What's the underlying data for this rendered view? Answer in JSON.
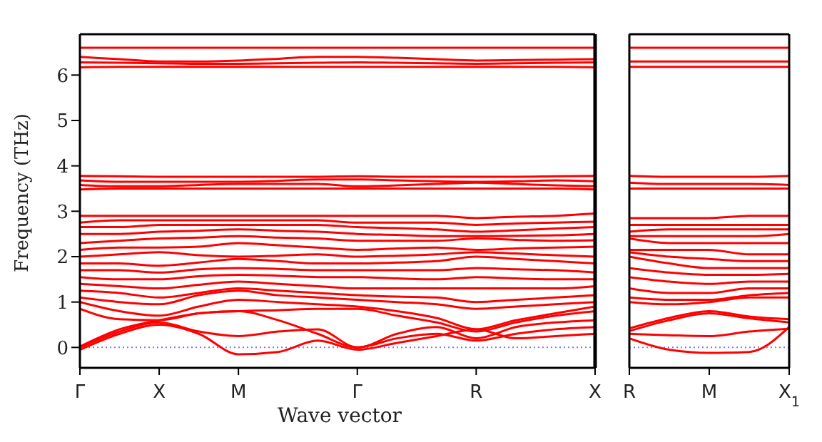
{
  "chart_data": [
    {
      "type": "line",
      "xlabel": "Wave vector",
      "ylabel": "Frequency (THz)",
      "marker": "none",
      "line_style": "solid",
      "categories": [
        "Γ",
        null,
        "X",
        null,
        "M",
        null,
        null,
        "Γ",
        null,
        null,
        "R",
        null,
        null,
        "X"
      ],
      "ylim": [
        -0.45,
        6.9
      ],
      "yticks": [
        0,
        1,
        2,
        3,
        4,
        5,
        6
      ],
      "ref_lines": [
        {
          "axis": "y",
          "value": 0,
          "color": "#7777ff",
          "line_style": "dotted"
        }
      ],
      "series": [
        {
          "color": "#ff0000",
          "values": [
            -0.05,
            0.3,
            0.5,
            0.3,
            -0.15,
            -0.1,
            0.15,
            -0.05,
            0.1,
            0.25,
            0.4,
            0.2,
            0.25,
            0.3
          ]
        },
        {
          "color": "#ff0000",
          "values": [
            0,
            0.35,
            0.55,
            0.35,
            0.25,
            0.35,
            0.4,
            0,
            0.2,
            0.3,
            0.15,
            0.3,
            0.4,
            0.45
          ]
        },
        {
          "color": "#ff0000",
          "values": [
            0.02,
            0.4,
            0.6,
            0.75,
            0.8,
            0.6,
            0.3,
            0,
            0.3,
            0.45,
            0.2,
            0.45,
            0.55,
            0.6
          ]
        },
        {
          "color": "#ff0000",
          "values": [
            0.85,
            0.62,
            0.6,
            0.75,
            0.8,
            0.82,
            0.85,
            0.85,
            0.7,
            0.55,
            0.35,
            0.55,
            0.7,
            0.8
          ]
        },
        {
          "color": "#ff0000",
          "values": [
            1,
            0.8,
            0.7,
            0.9,
            1.05,
            1,
            0.95,
            0.9,
            0.8,
            0.65,
            0.4,
            0.6,
            0.75,
            0.9
          ]
        },
        {
          "color": "#ff0000",
          "values": [
            1.1,
            1,
            0.95,
            1.15,
            1.25,
            1.15,
            1.1,
            1.05,
            1,
            0.95,
            0.85,
            0.9,
            0.95,
            1
          ]
        },
        {
          "color": "#ff0000",
          "values": [
            1.25,
            1.2,
            1.1,
            1.2,
            1.3,
            1.25,
            1.2,
            1.15,
            1.12,
            1.1,
            1,
            1.05,
            1.1,
            1.15
          ]
        },
        {
          "color": "#ff0000",
          "values": [
            1.4,
            1.35,
            1.3,
            1.38,
            1.45,
            1.4,
            1.35,
            1.3,
            1.3,
            1.3,
            1.3,
            1.3,
            1.3,
            1.35
          ]
        },
        {
          "color": "#ff0000",
          "values": [
            1.55,
            1.5,
            1.5,
            1.57,
            1.6,
            1.58,
            1.55,
            1.55,
            1.52,
            1.5,
            1.55,
            1.52,
            1.5,
            1.5
          ]
        },
        {
          "color": "#ff0000",
          "values": [
            1.7,
            1.7,
            1.65,
            1.72,
            1.75,
            1.73,
            1.7,
            1.7,
            1.7,
            1.7,
            1.75,
            1.72,
            1.7,
            1.65
          ]
        },
        {
          "color": "#ff0000",
          "values": [
            1.85,
            1.85,
            1.8,
            1.87,
            1.95,
            1.9,
            1.85,
            1.85,
            1.87,
            1.9,
            2,
            1.95,
            1.9,
            1.85
          ]
        },
        {
          "color": "#ff0000",
          "values": [
            2,
            2.05,
            2.1,
            2.03,
            2,
            2.02,
            2.05,
            2,
            2.02,
            2.05,
            2.1,
            2.07,
            2.03,
            2
          ]
        },
        {
          "color": "#ff0000",
          "values": [
            2.15,
            2.2,
            2.2,
            2.22,
            2.3,
            2.25,
            2.2,
            2.15,
            2.18,
            2.2,
            2.15,
            2.18,
            2.2,
            2.22
          ]
        },
        {
          "color": "#ff0000",
          "values": [
            2.3,
            2.35,
            2.4,
            2.42,
            2.45,
            2.42,
            2.4,
            2.35,
            2.35,
            2.35,
            2.4,
            2.37,
            2.35,
            2.36
          ]
        },
        {
          "color": "#ff0000",
          "values": [
            2.5,
            2.5,
            2.55,
            2.57,
            2.6,
            2.57,
            2.55,
            2.5,
            2.48,
            2.45,
            2.45,
            2.46,
            2.47,
            2.5
          ]
        },
        {
          "color": "#ff0000",
          "values": [
            2.65,
            2.65,
            2.7,
            2.7,
            2.7,
            2.7,
            2.7,
            2.65,
            2.63,
            2.6,
            2.55,
            2.58,
            2.62,
            2.65
          ]
        },
        {
          "color": "#ff0000",
          "values": [
            2.75,
            2.8,
            2.8,
            2.8,
            2.8,
            2.8,
            2.8,
            2.75,
            2.75,
            2.75,
            2.7,
            2.73,
            2.75,
            2.77
          ]
        },
        {
          "color": "#ff0000",
          "values": [
            2.9,
            2.9,
            2.9,
            2.9,
            2.9,
            2.9,
            2.9,
            2.9,
            2.9,
            2.9,
            2.85,
            2.88,
            2.9,
            2.95
          ]
        },
        {
          "color": "#ff0000",
          "values": [
            3.48,
            3.5,
            3.5,
            3.5,
            3.5,
            3.5,
            3.5,
            3.5,
            3.5,
            3.5,
            3.5,
            3.5,
            3.5,
            3.48
          ]
        },
        {
          "color": "#ff0000",
          "values": [
            3.58,
            3.55,
            3.55,
            3.58,
            3.6,
            3.6,
            3.6,
            3.55,
            3.57,
            3.6,
            3.63,
            3.6,
            3.57,
            3.55
          ]
        },
        {
          "color": "#ff0000",
          "values": [
            3.68,
            3.65,
            3.65,
            3.65,
            3.65,
            3.67,
            3.7,
            3.7,
            3.68,
            3.66,
            3.65,
            3.66,
            3.68,
            3.66
          ]
        },
        {
          "color": "#ff0000",
          "values": [
            3.78,
            3.77,
            3.76,
            3.76,
            3.76,
            3.76,
            3.76,
            3.77,
            3.76,
            3.76,
            3.76,
            3.76,
            3.77,
            3.78
          ]
        },
        {
          "color": "#ff0000",
          "values": [
            6.17,
            6.18,
            6.18,
            6.18,
            6.18,
            6.18,
            6.18,
            6.18,
            6.18,
            6.18,
            6.18,
            6.18,
            6.18,
            6.17
          ]
        },
        {
          "color": "#ff0000",
          "values": [
            6.28,
            6.27,
            6.26,
            6.25,
            6.25,
            6.26,
            6.27,
            6.28,
            6.27,
            6.26,
            6.25,
            6.26,
            6.27,
            6.28
          ]
        },
        {
          "color": "#ff0000",
          "values": [
            6.4,
            6.35,
            6.3,
            6.3,
            6.32,
            6.36,
            6.4,
            6.4,
            6.38,
            6.35,
            6.32,
            6.33,
            6.34,
            6.35
          ]
        },
        {
          "color": "#ff0000",
          "values": [
            6.6,
            6.6,
            6.6,
            6.6,
            6.6,
            6.6,
            6.6,
            6.6,
            6.6,
            6.6,
            6.6,
            6.6,
            6.6,
            6.6
          ]
        }
      ]
    },
    {
      "type": "line",
      "marker": "none",
      "line_style": "solid",
      "tick_labels": "x",
      "categories": [
        "R",
        null,
        "M",
        null,
        "X$_{1}$"
      ],
      "ylim": [
        -0.45,
        6.9
      ],
      "yticks": [
        0,
        1,
        2,
        3,
        4,
        5,
        6
      ],
      "ref_lines": [
        {
          "axis": "y",
          "value": 0,
          "color": "#7777ff",
          "line_style": "dotted"
        }
      ],
      "series": [
        {
          "color": "#ff0000",
          "values": [
            0.2,
            -0.05,
            -0.12,
            -0.1,
            0.45
          ]
        },
        {
          "color": "#ff0000",
          "values": [
            0.3,
            0.27,
            0.25,
            0.35,
            0.41
          ]
        },
        {
          "color": "#ff0000",
          "values": [
            0.42,
            0.65,
            0.8,
            0.68,
            0.62
          ]
        },
        {
          "color": "#ff0000",
          "values": [
            0.36,
            0.6,
            0.75,
            0.64,
            0.55
          ]
        },
        {
          "color": "#ff0000",
          "values": [
            1,
            0.95,
            1,
            1.1,
            1.1
          ]
        },
        {
          "color": "#ff0000",
          "values": [
            1.1,
            1.05,
            1.05,
            1.15,
            1.2
          ]
        },
        {
          "color": "#ff0000",
          "values": [
            1.3,
            1.2,
            1.2,
            1.3,
            1.3
          ]
        },
        {
          "color": "#ff0000",
          "values": [
            1.55,
            1.45,
            1.4,
            1.45,
            1.45
          ]
        },
        {
          "color": "#ff0000",
          "values": [
            1.75,
            1.65,
            1.6,
            1.6,
            1.62
          ]
        },
        {
          "color": "#ff0000",
          "values": [
            2,
            1.85,
            1.75,
            1.75,
            1.75
          ]
        },
        {
          "color": "#ff0000",
          "values": [
            2.1,
            2,
            1.95,
            1.9,
            1.9
          ]
        },
        {
          "color": "#ff0000",
          "values": [
            2.15,
            2.15,
            2.15,
            2.05,
            2.05
          ]
        },
        {
          "color": "#ff0000",
          "values": [
            2.4,
            2.3,
            2.3,
            2.3,
            2.3
          ]
        },
        {
          "color": "#ff0000",
          "values": [
            2.45,
            2.45,
            2.45,
            2.45,
            2.5
          ]
        },
        {
          "color": "#ff0000",
          "values": [
            2.55,
            2.6,
            2.6,
            2.6,
            2.6
          ]
        },
        {
          "color": "#ff0000",
          "values": [
            2.7,
            2.7,
            2.7,
            2.7,
            2.7
          ]
        },
        {
          "color": "#ff0000",
          "values": [
            2.85,
            2.85,
            2.85,
            2.9,
            2.9
          ]
        },
        {
          "color": "#ff0000",
          "values": [
            3.5,
            3.5,
            3.5,
            3.5,
            3.5
          ]
        },
        {
          "color": "#ff0000",
          "values": [
            3.63,
            3.6,
            3.6,
            3.6,
            3.58
          ]
        },
        {
          "color": "#ff0000",
          "values": [
            3.78,
            3.76,
            3.76,
            3.76,
            3.78
          ]
        },
        {
          "color": "#ff0000",
          "values": [
            6.18,
            6.18,
            6.18,
            6.18,
            6.18
          ]
        },
        {
          "color": "#ff0000",
          "values": [
            6.3,
            6.3,
            6.3,
            6.3,
            6.3
          ]
        },
        {
          "color": "#ff0000",
          "values": [
            6.6,
            6.6,
            6.6,
            6.6,
            6.6
          ]
        }
      ]
    }
  ]
}
